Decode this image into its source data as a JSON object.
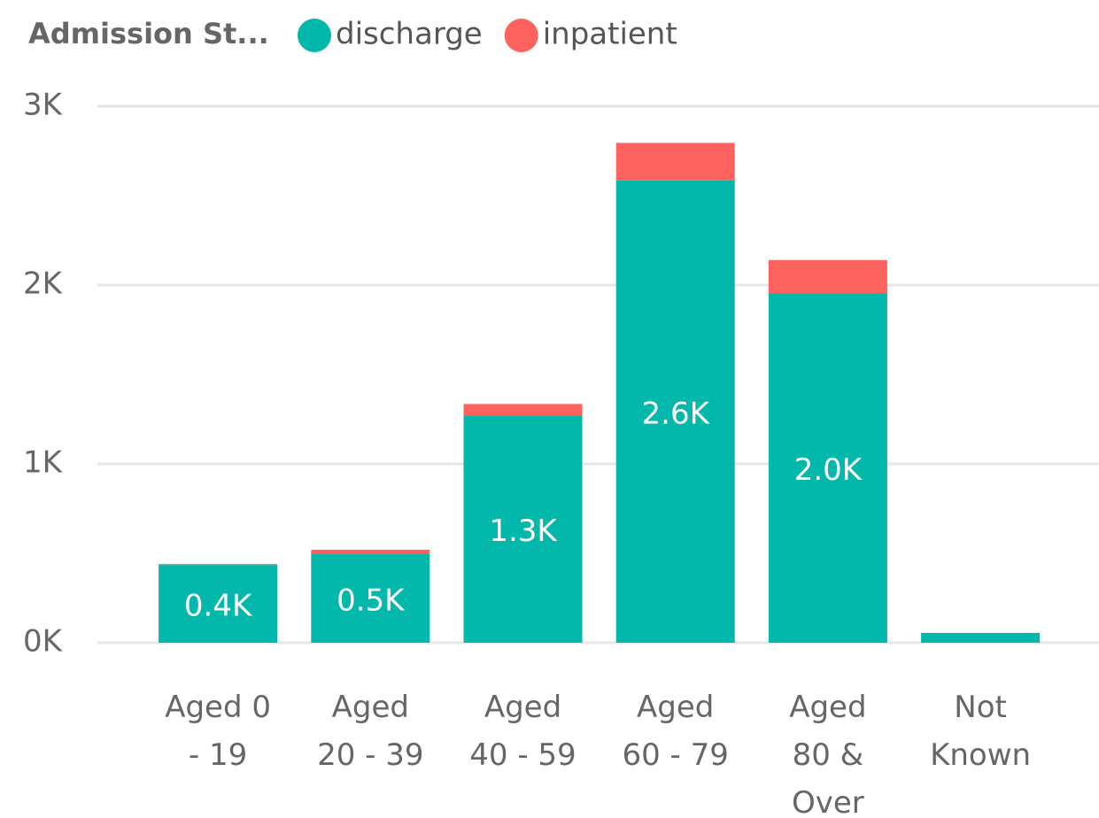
{
  "chart_data": {
    "type": "stacked_bar",
    "legend_title": "Admission St...",
    "categories": [
      "Aged 0\n- 19",
      "Aged\n20 - 39",
      "Aged\n40 - 59",
      "Aged\n60 - 79",
      "Aged\n80 &\nOver",
      "Not\nKnown"
    ],
    "series": [
      {
        "name": "discharge",
        "color": "#01b8aa",
        "values": [
          435,
          495,
          1270,
          2585,
          1955,
          55
        ],
        "value_labels": [
          "0.4K",
          "0.5K",
          "1.3K",
          "2.6K",
          "2.0K",
          null
        ]
      },
      {
        "name": "inpatient",
        "color": "#fd625e",
        "values": [
          5,
          25,
          65,
          210,
          185,
          0
        ]
      }
    ],
    "ylim": [
      0,
      3000
    ],
    "yticks": [
      {
        "value": 0,
        "label": "0K"
      },
      {
        "value": 1000,
        "label": "1K"
      },
      {
        "value": 2000,
        "label": "2K"
      },
      {
        "value": 3000,
        "label": "3K"
      }
    ],
    "grid": true
  }
}
